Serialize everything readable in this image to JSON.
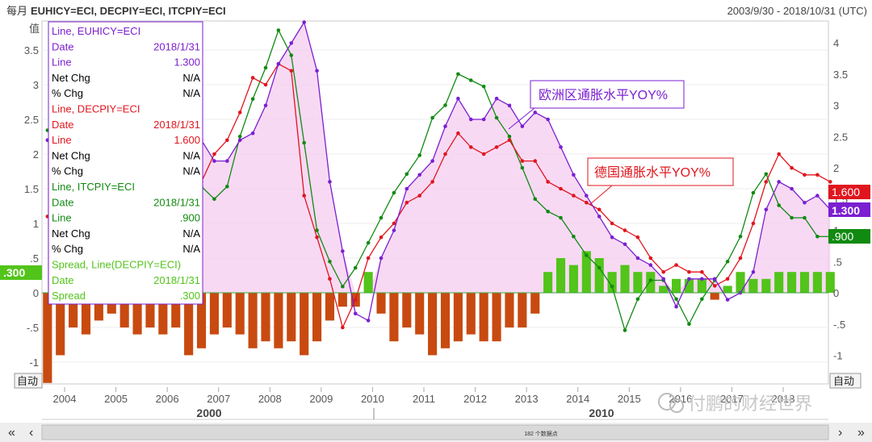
{
  "header": {
    "period_label": "每月",
    "tickers": "EUHICY=ECI, DECPIY=ECI, ITCPIY=ECI",
    "date_range": "2003/9/30 - 2018/10/31 (UTC)"
  },
  "axes": {
    "left_label": "值",
    "left_ticks": [
      "3.5",
      "3",
      "2.5",
      "2",
      "1.5",
      "1",
      ".5",
      "0",
      "-.5",
      "-1"
    ],
    "right_ticks": [
      "4",
      "3.5",
      "3",
      "2.5",
      "2",
      "1.5",
      "1",
      ".5",
      "0",
      "-.5",
      "-1"
    ],
    "x_year_ticks": [
      "2004",
      "2005",
      "2006",
      "2007",
      "2008",
      "2009",
      "2010",
      "2011",
      "2012",
      "2013",
      "2014",
      "2015",
      "2016",
      "2017",
      "2018"
    ],
    "decade_labels": [
      "2000",
      "2010"
    ],
    "auto_left": "自动",
    "auto_right": "自动"
  },
  "tooltip": [
    {
      "text": "Line, EUHICY=ECI",
      "value": "",
      "color": "#7b1fd1"
    },
    {
      "text": "Date",
      "value": "2018/1/31",
      "color": "#7b1fd1"
    },
    {
      "text": "Line",
      "value": "1.300",
      "color": "#7b1fd1"
    },
    {
      "text": "Net Chg",
      "value": "N/A",
      "color": "#000000"
    },
    {
      "text": "% Chg",
      "value": "N/A",
      "color": "#000000"
    },
    {
      "text": "Line, DECPIY=ECI",
      "value": "",
      "color": "#e0161e"
    },
    {
      "text": "Date",
      "value": "2018/1/31",
      "color": "#e0161e"
    },
    {
      "text": "Line",
      "value": "1.600",
      "color": "#e0161e"
    },
    {
      "text": "Net Chg",
      "value": "N/A",
      "color": "#000000"
    },
    {
      "text": "% Chg",
      "value": "N/A",
      "color": "#000000"
    },
    {
      "text": "Line, ITCPIY=ECI",
      "value": "",
      "color": "#118a11"
    },
    {
      "text": "Date",
      "value": "2018/1/31",
      "color": "#118a11"
    },
    {
      "text": "Line",
      "value": ".900",
      "color": "#118a11"
    },
    {
      "text": "Net Chg",
      "value": "N/A",
      "color": "#000000"
    },
    {
      "text": "% Chg",
      "value": "N/A",
      "color": "#000000"
    },
    {
      "text": "Spread, Line(DECPIY=ECI)",
      "value": "",
      "color": "#52c41a"
    },
    {
      "text": "Date",
      "value": "2018/1/31",
      "color": "#52c41a"
    },
    {
      "text": "Spread",
      "value": ".300",
      "color": "#52c41a"
    }
  ],
  "annotations": {
    "eurozone": "欧洲区通胀水平YOY%",
    "germany": "德国通胀水平YOY%"
  },
  "value_tags": {
    "left_spread": ".300",
    "de": "1.600",
    "eu": "1.300",
    "it": ".900"
  },
  "scrollbar": {
    "left_arrow": "‹",
    "right_arrow": "›",
    "left_end": "«",
    "right_end": "»",
    "center_text": "182 个数据点"
  },
  "watermark": "付鹏的财经世界",
  "colors": {
    "eu": "#7b1fd1",
    "de": "#e0161e",
    "it": "#118a11",
    "spread_pos": "#52c41a",
    "spread_neg": "#c84a10",
    "fill": "#f6ccf0"
  },
  "chart_data": {
    "type": "line",
    "x_start": "2003-09",
    "x_end": "2018-10",
    "x_step": "quarterly",
    "ylim": [
      -1.3,
      3.9
    ],
    "right_ylim": [
      -1.3,
      4.35
    ],
    "series": [
      {
        "name": "EUHICY=ECI",
        "values": [
          2.2,
          2.0,
          1.9,
          2.3,
          2.2,
          2.1,
          2.4,
          2.2,
          2.5,
          2.3,
          2.2,
          2.5,
          2.2,
          1.9,
          1.9,
          2.2,
          2.3,
          2.7,
          3.3,
          3.6,
          3.9,
          3.2,
          1.6,
          0.6,
          -0.3,
          -0.4,
          0.5,
          0.9,
          1.5,
          1.7,
          1.9,
          2.4,
          2.8,
          2.5,
          2.5,
          2.8,
          2.7,
          2.4,
          2.6,
          2.5,
          2.1,
          1.7,
          1.4,
          1.1,
          0.8,
          0.7,
          0.5,
          0.4,
          0.2,
          -0.2,
          0.2,
          0.2,
          0.2,
          -0.1,
          0.0,
          0.3,
          1.2,
          1.6,
          1.5,
          1.3,
          1.4,
          1.2
        ]
      },
      {
        "name": "DECPIY=ECI",
        "values": [
          1.1,
          1.3,
          1.6,
          1.8,
          1.8,
          1.5,
          2.1,
          1.9,
          1.9,
          1.9,
          1.9,
          1.7,
          1.6,
          2.0,
          2.2,
          2.6,
          3.1,
          3.0,
          3.3,
          3.2,
          1.4,
          0.8,
          0.2,
          -0.5,
          -0.1,
          0.5,
          0.8,
          1.0,
          1.3,
          1.4,
          1.6,
          2.0,
          2.3,
          2.1,
          2.0,
          2.1,
          2.2,
          1.9,
          1.9,
          1.6,
          1.5,
          1.4,
          1.3,
          1.2,
          1.0,
          0.9,
          0.8,
          0.5,
          0.3,
          0.4,
          0.3,
          0.3,
          0.1,
          0.2,
          0.5,
          1.0,
          1.6,
          2.0,
          1.8,
          1.7,
          1.7,
          1.6
        ]
      },
      {
        "name": "ITCPIY=ECI",
        "values": [
          2.6,
          2.4,
          2.2,
          2.1,
          2.1,
          1.8,
          2.3,
          2.2,
          2.3,
          2.0,
          2.1,
          2.0,
          1.7,
          1.5,
          1.7,
          2.5,
          3.1,
          3.6,
          4.2,
          3.8,
          2.4,
          1.0,
          0.5,
          0.1,
          0.4,
          0.8,
          1.2,
          1.6,
          1.9,
          2.2,
          2.8,
          3.0,
          3.5,
          3.4,
          3.3,
          2.8,
          2.5,
          2.0,
          1.5,
          1.3,
          1.2,
          0.9,
          0.6,
          0.4,
          0.1,
          -0.6,
          -0.1,
          0.2,
          0.2,
          -0.1,
          -0.5,
          -0.1,
          0.2,
          0.5,
          0.9,
          1.6,
          1.9,
          1.4,
          1.2,
          1.2,
          0.9,
          0.9
        ]
      },
      {
        "name": "Spread, Line(DECPIY=ECI)",
        "values": [
          -1.3,
          -0.9,
          -0.5,
          -0.6,
          -0.4,
          -0.3,
          -0.5,
          -0.6,
          -0.5,
          -0.6,
          -0.5,
          -0.9,
          -0.8,
          -0.6,
          -0.5,
          -0.6,
          -0.8,
          -0.7,
          -0.8,
          -0.7,
          -0.9,
          -0.7,
          -0.4,
          -0.2,
          -0.2,
          0.3,
          -0.3,
          -0.7,
          -0.5,
          -0.6,
          -0.9,
          -0.8,
          -0.7,
          -0.6,
          -0.7,
          -0.7,
          -0.5,
          -0.5,
          -0.3,
          0.3,
          0.5,
          0.4,
          0.6,
          0.5,
          0.3,
          0.4,
          0.3,
          0.3,
          0.1,
          0.2,
          0.2,
          0.2,
          -0.1,
          0.1,
          0.3,
          0.2,
          0.2,
          0.3,
          0.3,
          0.3,
          0.3,
          0.3
        ]
      }
    ]
  }
}
